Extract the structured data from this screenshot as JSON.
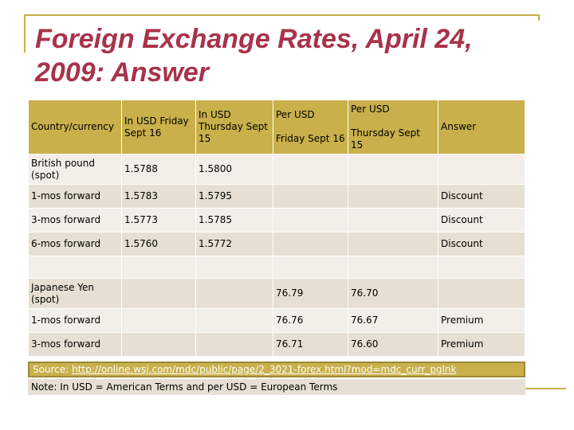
{
  "title": "Foreign Exchange Rates, April 24, 2009: Answer",
  "table": {
    "header": {
      "country": "Country/currency",
      "in_usd_fri": "In USD Friday  Sept 16",
      "in_usd_thu": "In USD Thursday Sept 15",
      "per_usd_fri": "Per USD\n\nFriday Sept 16",
      "per_usd_thu": "Per USD\n\nThursday Sept 15",
      "answer": "Answer"
    },
    "rows": [
      {
        "country": "British pound (spot)",
        "in_usd_fri": "1.5788",
        "in_usd_thu": "1.5800",
        "per_usd_fri": "",
        "per_usd_thu": "",
        "answer": ""
      },
      {
        "country": "1-mos forward",
        "in_usd_fri": "1.5783",
        "in_usd_thu": "1.5795",
        "per_usd_fri": "",
        "per_usd_thu": "",
        "answer": "Discount"
      },
      {
        "country": "3-mos forward",
        "in_usd_fri": "1.5773",
        "in_usd_thu": "1.5785",
        "per_usd_fri": "",
        "per_usd_thu": "",
        "answer": "Discount"
      },
      {
        "country": "6-mos forward",
        "in_usd_fri": "1.5760",
        "in_usd_thu": "1.5772",
        "per_usd_fri": "",
        "per_usd_thu": "",
        "answer": "Discount"
      },
      {
        "country": "",
        "in_usd_fri": "",
        "in_usd_thu": "",
        "per_usd_fri": "",
        "per_usd_thu": "",
        "answer": ""
      },
      {
        "country": "Japanese Yen (spot)",
        "in_usd_fri": "",
        "in_usd_thu": "",
        "per_usd_fri": "76.79",
        "per_usd_thu": "76.70",
        "answer": ""
      },
      {
        "country": "1-mos forward",
        "in_usd_fri": "",
        "in_usd_thu": "",
        "per_usd_fri": "76.76",
        "per_usd_thu": "76.67",
        "answer": "Premium"
      },
      {
        "country": "3-mos forward",
        "in_usd_fri": "",
        "in_usd_thu": "",
        "per_usd_fri": "76.71",
        "per_usd_thu": "76.60",
        "answer": "Premium"
      }
    ]
  },
  "source": {
    "label": "Source:",
    "url": "http://online.wsj.com/mdc/public/page/2_3021-forex.html?mod=mdc_curr_pglnk"
  },
  "note": "Note: In USD = American Terms and  per USD = European Terms"
}
